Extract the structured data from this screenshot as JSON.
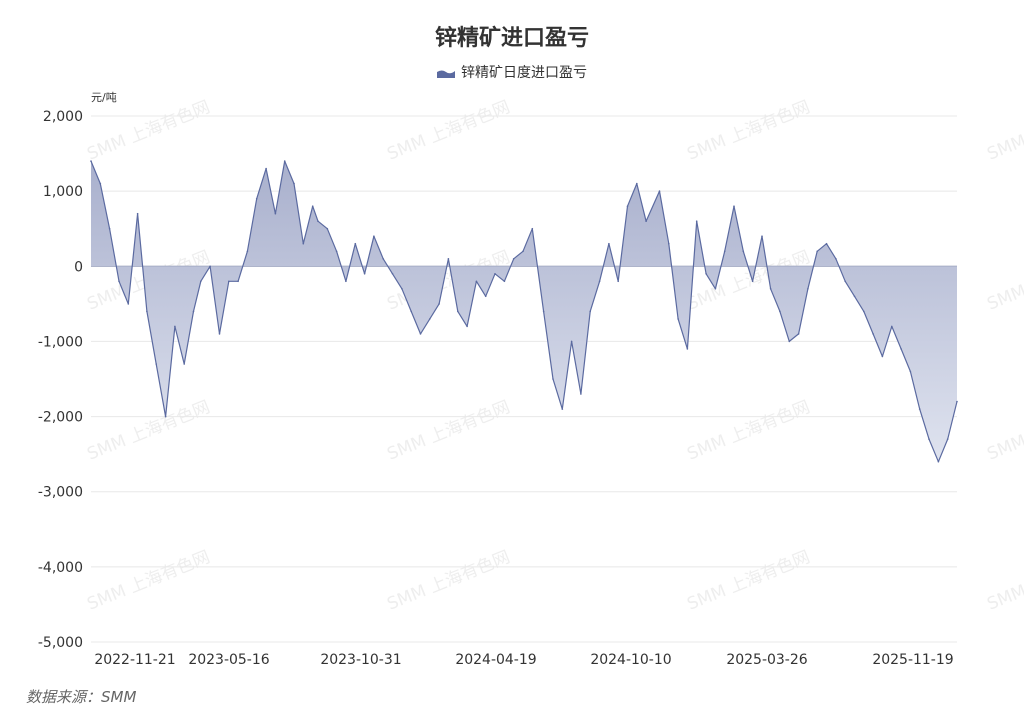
{
  "title": "锌精矿进口盈亏",
  "legend": {
    "label": "锌精矿日度进口盈亏",
    "color": "#5b6aa0"
  },
  "unit_label": "元/吨",
  "source": "数据来源：SMM",
  "watermark": "SMM 上海有色网",
  "colors": {
    "line": "#5b6aa0",
    "fill_top": "#a9b0cd",
    "fill_bottom": "#dfe3ef",
    "grid": "#e8e8e8",
    "axis_text": "#333333",
    "watermark": "#eeeeee"
  },
  "chart_data": {
    "type": "area",
    "title": "锌精矿进口盈亏",
    "ylabel": "元/吨",
    "ylim": [
      -5000,
      2000
    ],
    "yticks": [
      2000,
      1000,
      0,
      -1000,
      -2000,
      -3000,
      -4000,
      -5000
    ],
    "ytick_labels": [
      "2,000",
      "1,000",
      "0",
      "-1,000",
      "-2,000",
      "-3,000",
      "-4,000",
      "-5,000"
    ],
    "xtick_labels": [
      "2022-11-21",
      "2023-05-16",
      "2023-10-31",
      "2024-04-19",
      "2024-10-10",
      "2025-03-26",
      "2025-11-19"
    ],
    "grid": true,
    "legend_position": "top-center",
    "series": [
      {
        "name": "锌精矿日度进口盈亏",
        "x": [
          "2022-06-09",
          "2022-06-23",
          "2022-07-07",
          "2022-07-21",
          "2022-08-04",
          "2022-08-18",
          "2022-09-01",
          "2022-09-15",
          "2022-09-29",
          "2022-10-13",
          "2022-10-27",
          "2022-11-10",
          "2022-11-21",
          "2022-12-05",
          "2022-12-19",
          "2023-01-02",
          "2023-01-16",
          "2023-01-30",
          "2023-02-13",
          "2023-02-27",
          "2023-03-13",
          "2023-03-27",
          "2023-04-10",
          "2023-04-24",
          "2023-05-08",
          "2023-05-16",
          "2023-05-30",
          "2023-06-13",
          "2023-06-27",
          "2023-07-11",
          "2023-07-25",
          "2023-08-08",
          "2023-08-22",
          "2023-09-05",
          "2023-09-19",
          "2023-10-03",
          "2023-10-17",
          "2023-10-31",
          "2023-11-14",
          "2023-11-28",
          "2023-12-12",
          "2023-12-26",
          "2024-01-09",
          "2024-01-23",
          "2024-02-06",
          "2024-02-20",
          "2024-03-05",
          "2024-03-19",
          "2024-04-02",
          "2024-04-19",
          "2024-05-03",
          "2024-05-17",
          "2024-05-31",
          "2024-06-14",
          "2024-06-28",
          "2024-07-12",
          "2024-07-26",
          "2024-08-09",
          "2024-08-23",
          "2024-09-06",
          "2024-09-20",
          "2024-10-10",
          "2024-10-24",
          "2024-11-07",
          "2024-11-21",
          "2024-12-05",
          "2024-12-19",
          "2025-01-02",
          "2025-01-16",
          "2025-01-30",
          "2025-02-13",
          "2025-02-27",
          "2025-03-13",
          "2025-03-26",
          "2025-04-09",
          "2025-04-23",
          "2025-05-07",
          "2025-05-21",
          "2025-06-04",
          "2025-06-18",
          "2025-07-02",
          "2025-07-16",
          "2025-07-30",
          "2025-08-13",
          "2025-08-27",
          "2025-09-10",
          "2025-09-24",
          "2025-10-08",
          "2025-10-22",
          "2025-11-05",
          "2025-11-19",
          "2025-12-03",
          "2025-12-17",
          "2025-12-31"
        ],
        "values": [
          1400,
          1100,
          500,
          -200,
          -500,
          700,
          -600,
          -1300,
          -2000,
          -800,
          -1300,
          -600,
          -200,
          0,
          -900,
          -200,
          -200,
          200,
          900,
          1300,
          700,
          1400,
          1100,
          300,
          800,
          600,
          500,
          200,
          -200,
          300,
          -100,
          400,
          100,
          -100,
          -300,
          -600,
          -900,
          -700,
          -500,
          100,
          -600,
          -800,
          -200,
          -400,
          -100,
          -200,
          100,
          200,
          500,
          -600,
          -1500,
          -1900,
          -1000,
          -1700,
          -600,
          -200,
          300,
          -200,
          800,
          1100,
          600,
          1000,
          300,
          -700,
          -1100,
          600,
          -100,
          -300,
          200,
          800,
          200,
          -200,
          400,
          -300,
          -600,
          -1000,
          -900,
          -300,
          200,
          300,
          100,
          -200,
          -400,
          -600,
          -900,
          -1200,
          -800,
          -1100,
          -1400,
          -1900,
          -2300,
          -2600,
          -2300,
          -1800
        ]
      }
    ]
  }
}
